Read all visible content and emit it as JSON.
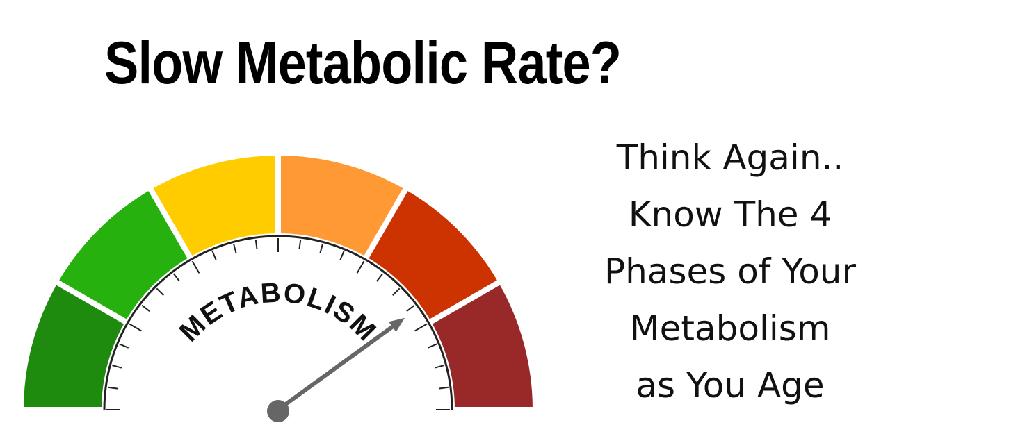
{
  "headline": "Slow Metabolic Rate?",
  "gauge": {
    "label": "METABOLISM",
    "needle_level": 0.8,
    "segments": [
      {
        "color": "#1E8A0E"
      },
      {
        "color": "#27B10F"
      },
      {
        "color": "#FFCC00"
      },
      {
        "color": "#FF9933"
      },
      {
        "color": "#CC3300"
      },
      {
        "color": "#992929"
      }
    ],
    "needle_color": "#666666"
  },
  "tagline": {
    "lines": [
      "Think Again..",
      "Know The 4",
      "Phases of Your",
      "Metabolism",
      "as You Age"
    ]
  }
}
